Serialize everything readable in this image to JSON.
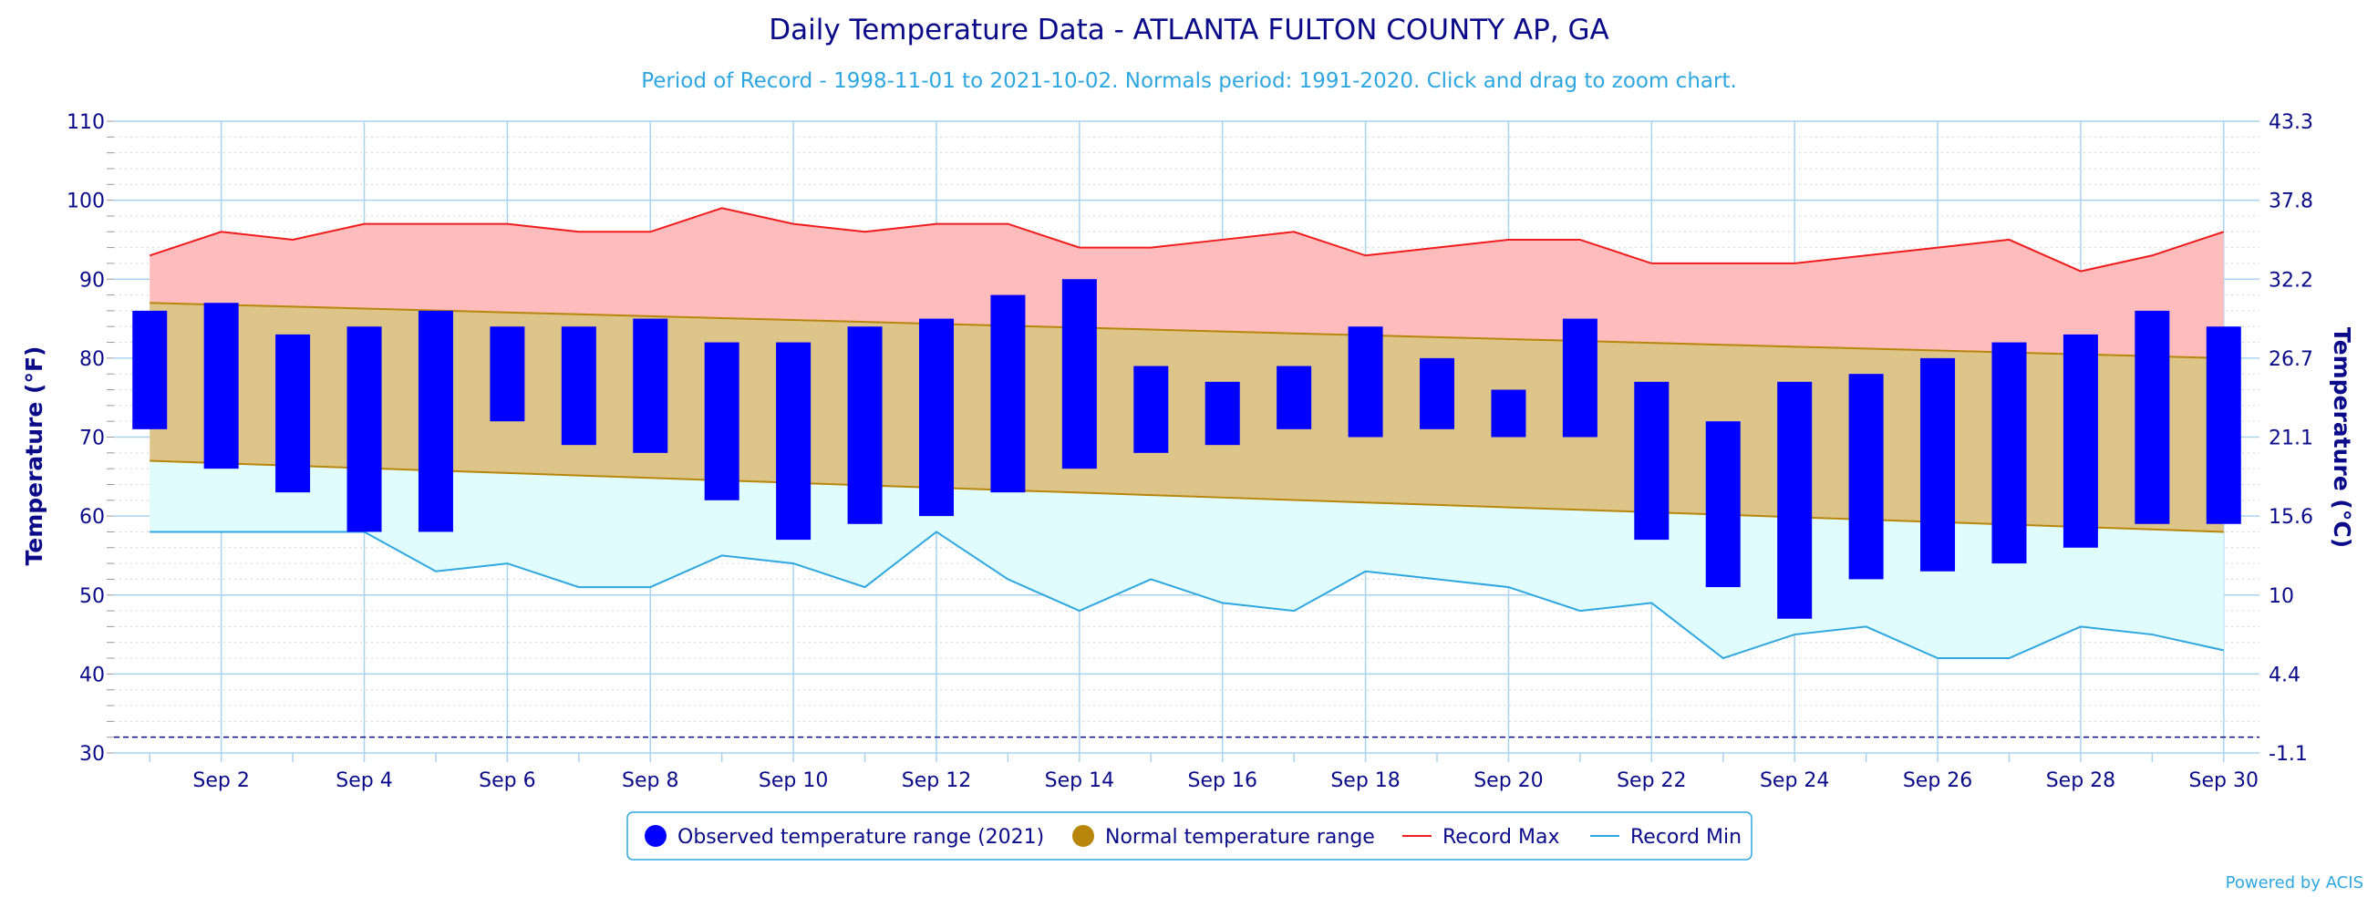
{
  "chart_data": {
    "type": "bar",
    "title": "Daily Temperature Data - ATLANTA FULTON COUNTY AP, GA",
    "subtitle": "Period of Record - 1998-11-01 to 2021-10-02. Normals period: 1991-2020. Click and drag to zoom chart.",
    "ylabel": "Temperature (°F)",
    "ylabel_right": "Temperature (°C)",
    "ylim": [
      30,
      110
    ],
    "yticks": [
      30,
      40,
      50,
      60,
      70,
      80,
      90,
      100,
      110
    ],
    "yticks_right": [
      "-1.1",
      "4.4",
      "10",
      "15.6",
      "21.1",
      "26.7",
      "32.2",
      "37.8",
      "43.3"
    ],
    "xlim": [
      1,
      30
    ],
    "xticks": [
      "Sep 2",
      "Sep 4",
      "Sep 6",
      "Sep 8",
      "Sep 10",
      "Sep 12",
      "Sep 14",
      "Sep 16",
      "Sep 18",
      "Sep 20",
      "Sep 22",
      "Sep 24",
      "Sep 26",
      "Sep 28",
      "Sep 30"
    ],
    "xtick_days": [
      2,
      4,
      6,
      8,
      10,
      12,
      14,
      16,
      18,
      20,
      22,
      24,
      26,
      28,
      30
    ],
    "days": [
      1,
      2,
      3,
      4,
      5,
      6,
      7,
      8,
      9,
      10,
      11,
      12,
      13,
      14,
      15,
      16,
      17,
      18,
      19,
      20,
      21,
      22,
      23,
      24,
      25,
      26,
      27,
      28,
      29,
      30
    ],
    "observed_high": [
      86,
      87,
      83,
      84,
      86,
      84,
      84,
      85,
      82,
      82,
      84,
      85,
      88,
      90,
      79,
      77,
      79,
      84,
      80,
      76,
      85,
      77,
      72,
      77,
      78,
      80,
      82,
      83,
      86,
      84
    ],
    "observed_low": [
      71,
      66,
      63,
      58,
      58,
      72,
      69,
      68,
      62,
      57,
      59,
      60,
      63,
      66,
      68,
      69,
      71,
      70,
      71,
      70,
      70,
      57,
      51,
      47,
      52,
      53,
      54,
      56,
      59,
      59
    ],
    "normal_high_start": 87,
    "normal_high_end": 80,
    "normal_low_start": 67,
    "normal_low_end": 58,
    "record_max": [
      93,
      96,
      95,
      97,
      97,
      97,
      96,
      96,
      99,
      97,
      96,
      97,
      97,
      94,
      94,
      95,
      96,
      93,
      94,
      95,
      95,
      92,
      92,
      92,
      93,
      94,
      95,
      91,
      93,
      96
    ],
    "record_min": [
      58,
      58,
      58,
      58,
      53,
      54,
      51,
      51,
      55,
      54,
      51,
      58,
      52,
      48,
      52,
      49,
      48,
      53,
      52,
      51,
      48,
      49,
      42,
      45,
      46,
      42,
      42,
      46,
      45,
      43
    ],
    "freezing_line": 32,
    "colors": {
      "observed": "#0000ff",
      "normal_band": "#ddc488",
      "normal_line": "#b8860b",
      "normal_legend": "#b8860b",
      "record_max_line": "#ee1c1c",
      "record_max_fill": "#ffbcbc",
      "record_min_line": "#2ea7e0",
      "record_min_fill": "#e0fcfc",
      "grid": "#a9d3ef",
      "text": "#0b0b8a"
    },
    "legend": [
      {
        "label": "Observed temperature range (2021)",
        "marker": "circle",
        "color": "#0000ff"
      },
      {
        "label": "Normal temperature range",
        "marker": "circle",
        "color": "#b8860b"
      },
      {
        "label": "Record Max",
        "marker": "line",
        "color": "#ee1c1c"
      },
      {
        "label": "Record Min",
        "marker": "line",
        "color": "#2ea7e0"
      }
    ],
    "legend_position": "bottom-center",
    "credit": "Powered by ACIS"
  }
}
